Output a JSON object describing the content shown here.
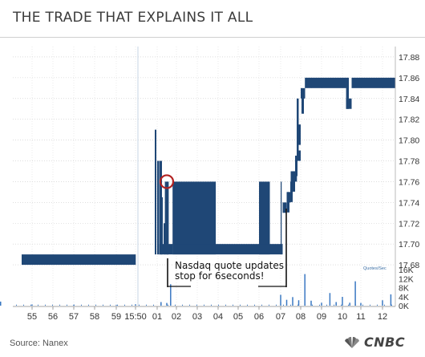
{
  "title": "THE TRADE THAT EXPLAINS IT ALL",
  "source": "Source: Nanex",
  "brand": "CNBC",
  "annotation": [
    "Nasdaq quote updates",
    "stop for 6seconds!"
  ],
  "chart_data": [
    {
      "type": "line",
      "title": "THE TRADE THAT EXPLAINS IT ALL",
      "xlabel": "",
      "ylabel": "",
      "x_tick_labels": [
        "55",
        "56",
        "57",
        "58",
        "59",
        "15:50",
        "01",
        "02",
        "03",
        "04",
        "05",
        "06",
        "07",
        "08",
        "09",
        "10",
        "11",
        "12"
      ],
      "ylim": [
        17.66,
        17.89
      ],
      "y_ticks": [
        "17.88",
        "17.86",
        "17.84",
        "17.82",
        "17.80",
        "17.78",
        "17.76",
        "17.74",
        "17.72",
        "17.70",
        "17.68"
      ],
      "grid": true,
      "series": [
        {
          "name": "",
          "x": [
            "54.5",
            "55",
            "56",
            "57",
            "58",
            "59",
            "15:50",
            "00.9",
            "01.1",
            "01.4",
            "01.8",
            "06",
            "07",
            "07.1",
            "07.3",
            "07.5",
            "07.6",
            "07.8",
            "08",
            "08.2",
            "08.5",
            "09",
            "10",
            "10.2",
            "10.5",
            "11",
            "12",
            "12.4",
            "12.6"
          ],
          "low": [
            17.68,
            17.68,
            17.68,
            17.68,
            17.68,
            17.68,
            17.68,
            17.69,
            17.69,
            17.69,
            17.69,
            17.69,
            17.69,
            17.73,
            17.74,
            17.75,
            17.76,
            17.78,
            17.84,
            17.85,
            17.85,
            17.85,
            17.85,
            17.83,
            17.85,
            17.85,
            17.85,
            17.85,
            17.86
          ],
          "high": [
            17.69,
            17.69,
            17.69,
            17.69,
            17.69,
            17.69,
            17.69,
            17.81,
            17.78,
            17.76,
            17.76,
            17.76,
            17.76,
            17.74,
            17.75,
            17.77,
            17.77,
            17.84,
            17.85,
            17.86,
            17.86,
            17.86,
            17.86,
            17.86,
            17.86,
            17.86,
            17.86,
            17.86,
            17.87
          ]
        }
      ],
      "highlight": {
        "x": "01.5",
        "y": 17.76
      }
    },
    {
      "type": "bar",
      "title": "",
      "ylabel": "Quotes/Sec",
      "y_tick_labels": [
        "16K",
        "12K",
        "8K",
        "4K",
        "0K"
      ],
      "ylim": [
        0,
        16000
      ],
      "grid": true,
      "x": [
        "55",
        "57",
        "59",
        "15:50",
        "00.9",
        "01.2",
        "01.5",
        "01.7",
        "07",
        "07.3",
        "07.6",
        "07.9",
        "08.2",
        "08.5",
        "09",
        "09.4",
        "09.7",
        "10",
        "10.4",
        "10.7",
        "11",
        "12",
        "12.4"
      ],
      "values": [
        500,
        400,
        300,
        600,
        1800,
        1600,
        1200,
        9500,
        4800,
        2600,
        3800,
        2400,
        14000,
        2200,
        1300,
        5600,
        1600,
        3900,
        1300,
        10800,
        1200,
        2400,
        5000
      ]
    }
  ]
}
